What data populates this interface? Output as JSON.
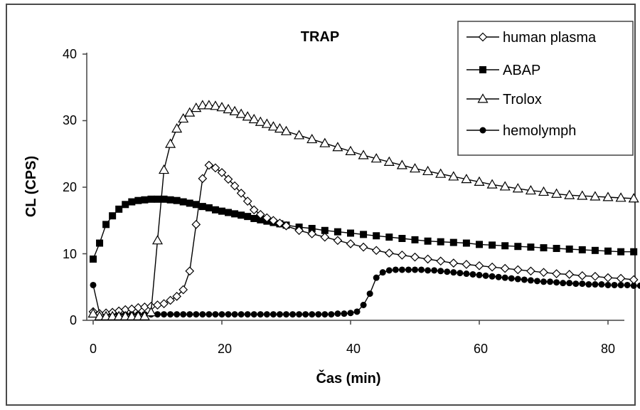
{
  "chart_data": {
    "type": "line",
    "title": "TRAP",
    "xlabel": "Čas (min)",
    "ylabel": "CL (CPS)",
    "xlim": [
      0,
      85
    ],
    "ylim": [
      0,
      40
    ],
    "xticks": [
      "0",
      "20",
      "40",
      "60",
      "80"
    ],
    "yticks": [
      "0",
      "10",
      "20",
      "30",
      "40"
    ],
    "grid": false,
    "legend_position": "top-right",
    "series": [
      {
        "name": "human plasma",
        "marker": "diamond-open",
        "x": [
          0,
          1,
          2,
          3,
          4,
          5,
          6,
          7,
          8,
          9,
          10,
          11,
          12,
          13,
          14,
          15,
          16,
          17,
          18,
          19,
          20,
          21,
          22,
          23,
          24,
          25,
          26,
          27,
          28,
          29,
          30,
          32,
          34,
          36,
          38,
          40,
          42,
          44,
          46,
          48,
          50,
          52,
          54,
          56,
          58,
          60,
          62,
          64,
          66,
          68,
          70,
          72,
          74,
          76,
          78,
          80,
          82,
          84
        ],
        "y": [
          1.3,
          1.0,
          1.1,
          1.2,
          1.4,
          1.6,
          1.7,
          1.9,
          2.0,
          2.1,
          2.3,
          2.5,
          3.0,
          3.6,
          4.6,
          7.4,
          14.4,
          21.3,
          23.3,
          22.9,
          22.2,
          21.2,
          20.2,
          19.1,
          17.9,
          16.6,
          15.9,
          15.4,
          15.0,
          14.6,
          14.2,
          13.5,
          13.0,
          12.5,
          12.0,
          11.5,
          11.0,
          10.5,
          10.1,
          9.8,
          9.5,
          9.2,
          8.9,
          8.6,
          8.4,
          8.2,
          8.0,
          7.8,
          7.6,
          7.4,
          7.2,
          7.0,
          6.9,
          6.7,
          6.6,
          6.4,
          6.3,
          6.1
        ]
      },
      {
        "name": "ABAP",
        "marker": "square-filled",
        "x": [
          0,
          1,
          2,
          3,
          4,
          5,
          6,
          7,
          8,
          9,
          10,
          11,
          12,
          13,
          14,
          15,
          16,
          17,
          18,
          19,
          20,
          21,
          22,
          23,
          24,
          25,
          26,
          27,
          28,
          29,
          30,
          32,
          34,
          36,
          38,
          40,
          42,
          44,
          46,
          48,
          50,
          52,
          54,
          56,
          58,
          60,
          62,
          64,
          66,
          68,
          70,
          72,
          74,
          76,
          78,
          80,
          82,
          84
        ],
        "y": [
          9.2,
          11.6,
          14.4,
          15.7,
          16.7,
          17.4,
          17.8,
          18.0,
          18.1,
          18.2,
          18.2,
          18.2,
          18.1,
          18.0,
          17.8,
          17.6,
          17.4,
          17.1,
          16.9,
          16.6,
          16.4,
          16.2,
          16.0,
          15.8,
          15.6,
          15.3,
          15.1,
          14.9,
          14.7,
          14.5,
          14.3,
          14.0,
          13.8,
          13.5,
          13.3,
          13.1,
          12.9,
          12.7,
          12.5,
          12.3,
          12.1,
          11.9,
          11.8,
          11.7,
          11.6,
          11.4,
          11.3,
          11.2,
          11.1,
          11.0,
          10.9,
          10.8,
          10.7,
          10.6,
          10.5,
          10.4,
          10.3,
          10.3
        ]
      },
      {
        "name": "Trolox",
        "marker": "triangle-open",
        "x": [
          0,
          1,
          2,
          3,
          4,
          5,
          6,
          7,
          8,
          9,
          10,
          11,
          12,
          13,
          14,
          15,
          16,
          17,
          18,
          19,
          20,
          21,
          22,
          23,
          24,
          25,
          26,
          27,
          28,
          29,
          30,
          32,
          34,
          36,
          38,
          40,
          42,
          44,
          46,
          48,
          50,
          52,
          54,
          56,
          58,
          60,
          62,
          64,
          66,
          68,
          70,
          72,
          74,
          76,
          78,
          80,
          82,
          84
        ],
        "y": [
          1.0,
          0.6,
          0.6,
          0.6,
          0.6,
          0.6,
          0.6,
          0.6,
          0.6,
          1.2,
          12.0,
          22.6,
          26.5,
          28.8,
          30.3,
          31.2,
          31.9,
          32.3,
          32.3,
          32.2,
          32.0,
          31.7,
          31.4,
          31.0,
          30.6,
          30.2,
          29.8,
          29.5,
          29.1,
          28.8,
          28.4,
          27.8,
          27.2,
          26.6,
          26.0,
          25.4,
          24.8,
          24.3,
          23.8,
          23.3,
          22.8,
          22.4,
          22.0,
          21.6,
          21.2,
          20.8,
          20.4,
          20.1,
          19.8,
          19.5,
          19.3,
          19.0,
          18.8,
          18.7,
          18.6,
          18.5,
          18.4,
          18.3
        ]
      },
      {
        "name": "hemolymph",
        "marker": "circle-filled",
        "x": [
          0,
          1,
          2,
          3,
          4,
          5,
          6,
          7,
          8,
          9,
          10,
          11,
          12,
          13,
          14,
          15,
          16,
          17,
          18,
          19,
          20,
          21,
          22,
          23,
          24,
          25,
          26,
          27,
          28,
          29,
          30,
          31,
          32,
          33,
          34,
          35,
          36,
          37,
          38,
          39,
          40,
          41,
          42,
          43,
          44,
          45,
          46,
          47,
          48,
          49,
          50,
          51,
          52,
          53,
          54,
          55,
          56,
          57,
          58,
          59,
          60,
          61,
          62,
          63,
          64,
          65,
          66,
          67,
          68,
          69,
          70,
          71,
          72,
          73,
          74,
          75,
          76,
          77,
          78,
          79,
          80,
          81,
          82,
          83,
          84,
          85,
          86
        ],
        "y": [
          5.3,
          1.0,
          0.9,
          0.9,
          0.9,
          0.9,
          0.9,
          0.9,
          0.9,
          0.9,
          0.9,
          0.9,
          0.9,
          0.9,
          0.9,
          0.9,
          0.9,
          0.9,
          0.9,
          0.9,
          0.9,
          0.9,
          0.9,
          0.9,
          0.9,
          0.9,
          0.9,
          0.9,
          0.9,
          0.9,
          0.9,
          0.9,
          0.9,
          0.9,
          0.9,
          0.9,
          0.9,
          0.9,
          1.0,
          1.0,
          1.1,
          1.3,
          2.3,
          4.0,
          6.4,
          7.2,
          7.5,
          7.6,
          7.6,
          7.6,
          7.6,
          7.6,
          7.5,
          7.5,
          7.4,
          7.3,
          7.2,
          7.1,
          7.0,
          6.9,
          6.8,
          6.7,
          6.6,
          6.5,
          6.4,
          6.3,
          6.2,
          6.1,
          6.0,
          5.9,
          5.8,
          5.8,
          5.7,
          5.6,
          5.6,
          5.5,
          5.5,
          5.4,
          5.4,
          5.4,
          5.3,
          5.3,
          5.3,
          5.3,
          5.2,
          5.2,
          5.2
        ]
      }
    ]
  }
}
